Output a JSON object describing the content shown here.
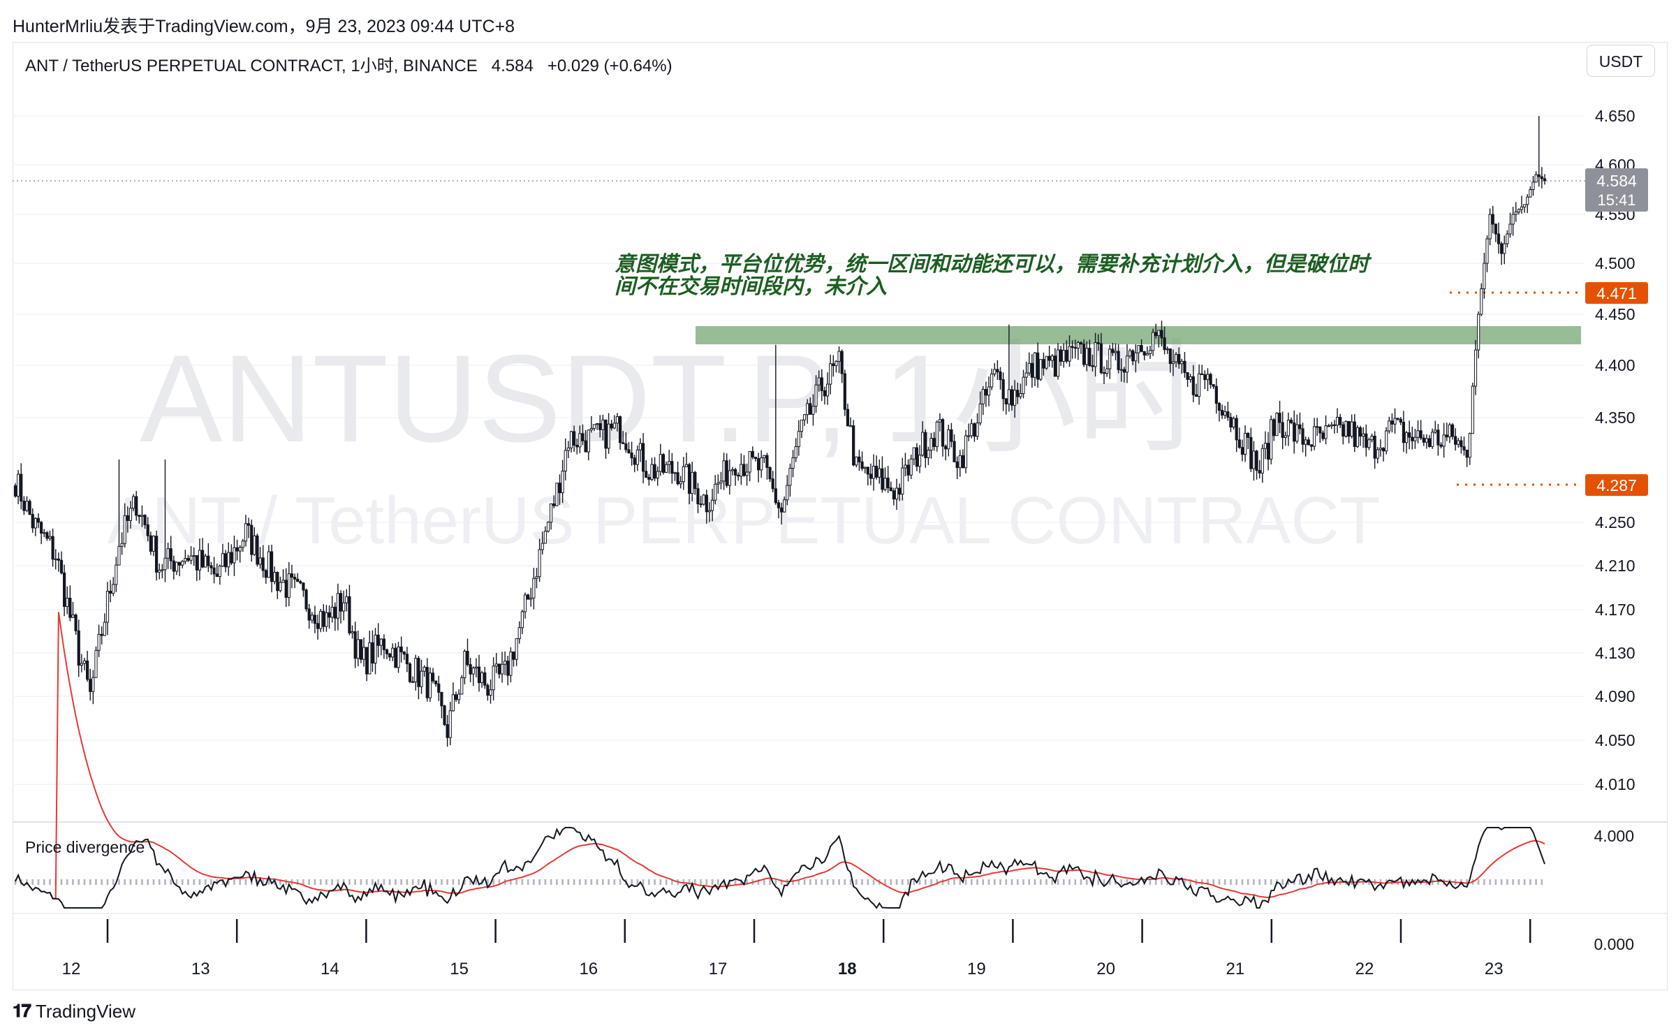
{
  "header": {
    "publisher_line": "HunterMrliu发表于TradingView.com，9月 23, 2023 09:44 UTC+8"
  },
  "symbol": {
    "title": "ANT / TetherUS PERPETUAL CONTRACT, 1小时, BINANCE",
    "last": "4.584",
    "change": "+0.029 (+0.64%)",
    "currency": "USDT"
  },
  "watermark": {
    "line1": "ANTUSDT.P, 1小时",
    "line2": "ANT / TetherUS PERPETUAL CONTRACT"
  },
  "annotation": {
    "line1": "意图模式，平台位优势，统一区间和动能还可以，需要补充计划介入，但是破位时",
    "line2": "间不在交易时间段内，未介入"
  },
  "price_tags": {
    "current": "4.584",
    "countdown": "15:41",
    "upper_level": "4.471",
    "lower_level": "4.287"
  },
  "indicator": {
    "name": "Price divergence",
    "axis_top": "4.000",
    "axis_bottom": "0.000"
  },
  "footer": {
    "brand": "TradingView"
  },
  "colors": {
    "candle": "#131722",
    "zone": "#7aa978",
    "level": "#e65100",
    "annotation": "#1b5e20",
    "ind_line": "#131722",
    "ind_signal": "#e53935",
    "ind_hist": "#b2b5be"
  },
  "chart_data": {
    "type": "candlestick",
    "x_ticks": [
      "12",
      "13",
      "14",
      "15",
      "16",
      "17",
      "18",
      "19",
      "20",
      "21",
      "22",
      "23"
    ],
    "y_ticks": [
      "4.650",
      "4.600",
      "4.550",
      "4.500",
      "4.450",
      "4.400",
      "4.350",
      "4.250",
      "4.210",
      "4.170",
      "4.130",
      "4.090",
      "4.050",
      "4.010"
    ],
    "zone": {
      "low": 4.422,
      "high": 4.438
    },
    "levels": [
      4.471,
      4.287
    ],
    "last_price": 4.584,
    "keypoints": [
      [
        0,
        4.29
      ],
      [
        6,
        4.25
      ],
      [
        14,
        4.22
      ],
      [
        22,
        4.13
      ],
      [
        26,
        4.09
      ],
      [
        30,
        4.15
      ],
      [
        36,
        4.23
      ],
      [
        42,
        4.27
      ],
      [
        50,
        4.21
      ],
      [
        60,
        4.22
      ],
      [
        70,
        4.2
      ],
      [
        80,
        4.24
      ],
      [
        90,
        4.2
      ],
      [
        100,
        4.18
      ],
      [
        108,
        4.16
      ],
      [
        114,
        4.18
      ],
      [
        120,
        4.12
      ],
      [
        128,
        4.14
      ],
      [
        136,
        4.12
      ],
      [
        144,
        4.1
      ],
      [
        150,
        4.06
      ],
      [
        156,
        4.12
      ],
      [
        164,
        4.1
      ],
      [
        170,
        4.11
      ],
      [
        176,
        4.16
      ],
      [
        182,
        4.22
      ],
      [
        188,
        4.28
      ],
      [
        192,
        4.33
      ],
      [
        200,
        4.33
      ],
      [
        210,
        4.34
      ],
      [
        220,
        4.3
      ],
      [
        230,
        4.3
      ],
      [
        240,
        4.27
      ],
      [
        250,
        4.31
      ],
      [
        260,
        4.3
      ],
      [
        266,
        4.26
      ],
      [
        272,
        4.33
      ],
      [
        280,
        4.38
      ],
      [
        286,
        4.4
      ],
      [
        292,
        4.3
      ],
      [
        300,
        4.29
      ],
      [
        306,
        4.28
      ],
      [
        314,
        4.32
      ],
      [
        320,
        4.34
      ],
      [
        328,
        4.31
      ],
      [
        334,
        4.35
      ],
      [
        340,
        4.39
      ],
      [
        346,
        4.37
      ],
      [
        354,
        4.4
      ],
      [
        360,
        4.4
      ],
      [
        368,
        4.41
      ],
      [
        374,
        4.41
      ],
      [
        382,
        4.4
      ],
      [
        390,
        4.42
      ],
      [
        396,
        4.43
      ],
      [
        402,
        4.4
      ],
      [
        408,
        4.38
      ],
      [
        414,
        4.39
      ],
      [
        420,
        4.36
      ],
      [
        426,
        4.33
      ],
      [
        432,
        4.3
      ],
      [
        438,
        4.35
      ],
      [
        446,
        4.33
      ],
      [
        454,
        4.33
      ],
      [
        462,
        4.34
      ],
      [
        470,
        4.32
      ],
      [
        478,
        4.34
      ],
      [
        486,
        4.33
      ],
      [
        494,
        4.33
      ],
      [
        500,
        4.33
      ],
      [
        504,
        4.31
      ],
      [
        508,
        4.45
      ],
      [
        512,
        4.55
      ],
      [
        516,
        4.51
      ],
      [
        520,
        4.55
      ],
      [
        524,
        4.56
      ],
      [
        528,
        4.59
      ],
      [
        531,
        4.584
      ]
    ],
    "candle_count": 532
  }
}
